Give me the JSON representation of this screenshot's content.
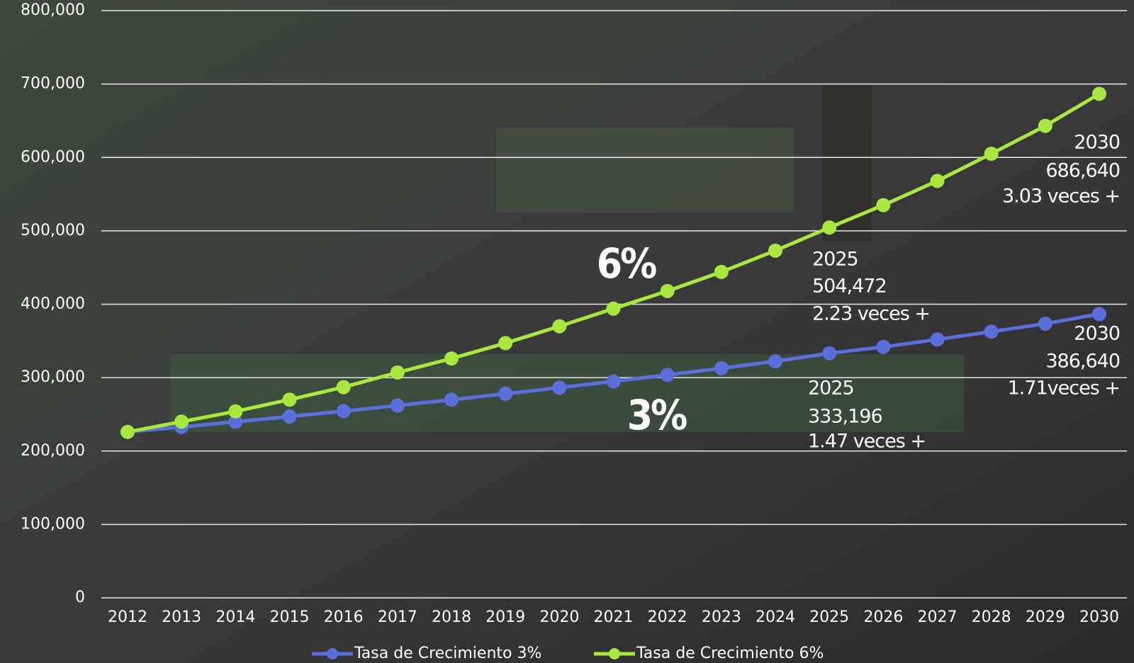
{
  "chart_data": {
    "type": "line",
    "categories": [
      "2012",
      "2013",
      "2014",
      "2015",
      "2016",
      "2017",
      "2018",
      "2019",
      "2020",
      "2021",
      "2022",
      "2023",
      "2024",
      "2025",
      "2026",
      "2027",
      "2028",
      "2029",
      "2030"
    ],
    "series": [
      {
        "name": "Tasa de Crecimiento 3%",
        "color": "#5b6fdc",
        "values": [
          226000,
          232800,
          239800,
          247000,
          254400,
          262000,
          269900,
          278000,
          286300,
          294900,
          303700,
          312800,
          322200,
          333196,
          341800,
          352000,
          362600,
          373500,
          386640
        ]
      },
      {
        "name": "Tasa de Crecimiento 6%",
        "color": "#a8e83e",
        "values": [
          226000,
          240000,
          254000,
          270000,
          287000,
          307000,
          326000,
          347000,
          370000,
          394000,
          418000,
          444000,
          473000,
          504472,
          535000,
          568000,
          605000,
          643000,
          686640
        ]
      }
    ],
    "ylim": [
      0,
      800000
    ],
    "yticks": [
      {
        "value": 0,
        "label": "0"
      },
      {
        "value": 100000,
        "label": "100,000"
      },
      {
        "value": 200000,
        "label": "200,000"
      },
      {
        "value": 300000,
        "label": "300,000"
      },
      {
        "value": 400000,
        "label": "400,000"
      },
      {
        "value": 500000,
        "label": "500,000"
      },
      {
        "value": 600000,
        "label": "600,000"
      },
      {
        "value": 700000,
        "label": "700,000"
      },
      {
        "value": 800000,
        "label": "800,000"
      }
    ],
    "grid": true,
    "legend": "bottom",
    "series_labels": [
      "3%",
      "6%"
    ],
    "annotations": [
      {
        "lines": [
          "2025",
          "504,472",
          "2.23 veces +"
        ]
      },
      {
        "lines": [
          "2030",
          "686,640",
          "3.03 veces +"
        ]
      },
      {
        "lines": [
          "2025",
          "333,196",
          "1.47 veces +"
        ]
      },
      {
        "lines": [
          "2030",
          "386,640",
          "1.71veces +"
        ]
      }
    ]
  }
}
